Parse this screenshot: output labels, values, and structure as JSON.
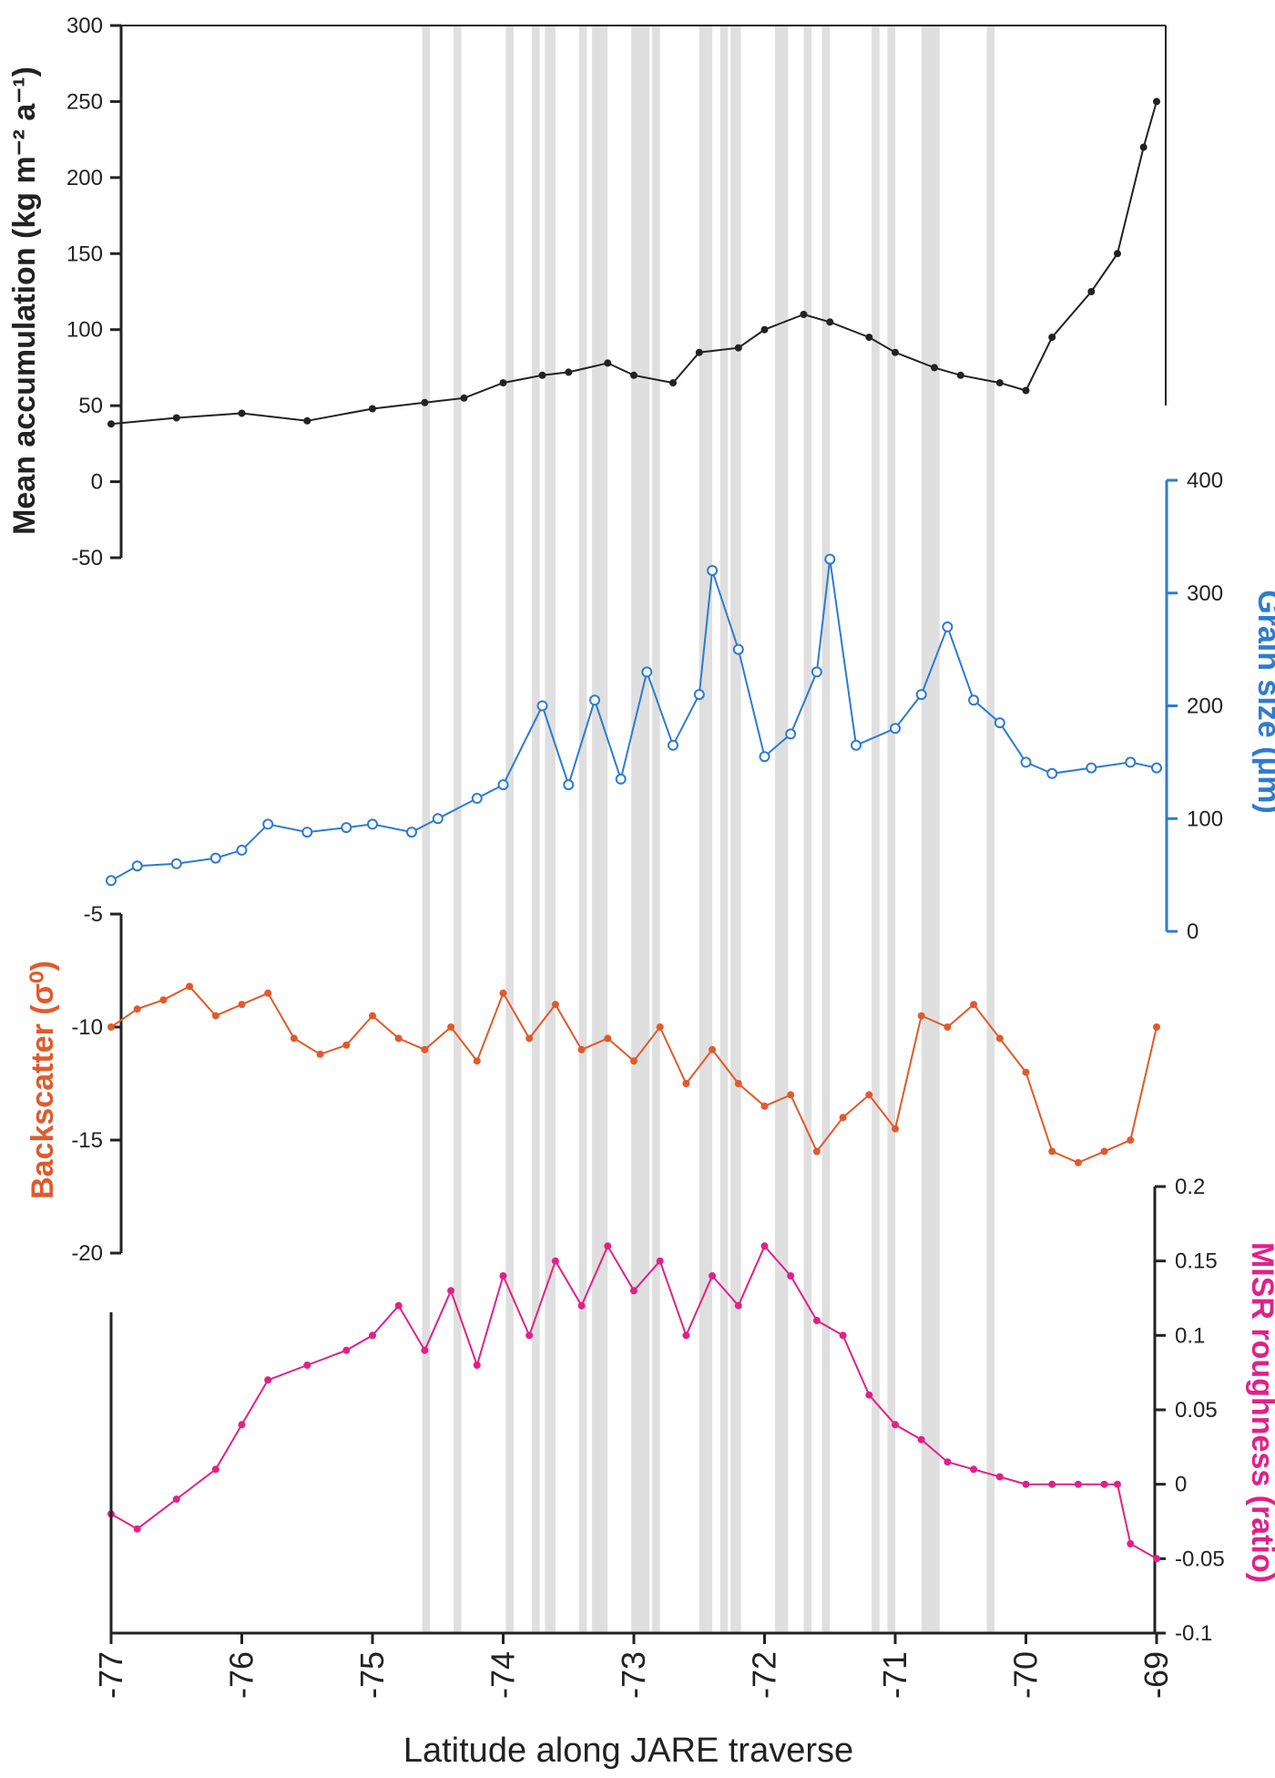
{
  "chart_data": {
    "type": "line",
    "x_axis": {
      "label": "Latitude along JARE traverse",
      "range": [
        -77,
        -69
      ],
      "ticks": [
        "-77",
        "-76",
        "-75",
        "-74",
        "-73",
        "-72",
        "-71",
        "-70",
        "-69"
      ]
    },
    "shaded_bands": [
      [
        -74.62,
        -74.56
      ],
      [
        -74.38,
        -74.32
      ],
      [
        -73.98,
        -73.92
      ],
      [
        -73.78,
        -73.72
      ],
      [
        -73.68,
        -73.6
      ],
      [
        -73.42,
        -73.36
      ],
      [
        -73.32,
        -73.2
      ],
      [
        -73.02,
        -72.88
      ],
      [
        -72.86,
        -72.8
      ],
      [
        -72.5,
        -72.4
      ],
      [
        -72.34,
        -72.28
      ],
      [
        -72.26,
        -72.18
      ],
      [
        -71.92,
        -71.82
      ],
      [
        -71.7,
        -71.64
      ],
      [
        -71.56,
        -71.5
      ],
      [
        -71.18,
        -71.12
      ],
      [
        -71.06,
        -71.0
      ],
      [
        -70.8,
        -70.66
      ],
      [
        -70.3,
        -70.24
      ]
    ],
    "panels": [
      {
        "id": "accumulation",
        "ylabel": "Mean accumulation (kg m⁻² a⁻¹)",
        "color": "#222222",
        "yrange": [
          -50,
          300
        ],
        "yticks": [
          "300",
          "250",
          "200",
          "150",
          "100",
          "50",
          "0",
          "-50"
        ],
        "axis_side": "left",
        "x": [
          -77.0,
          -76.5,
          -76.0,
          -75.5,
          -75.0,
          -74.6,
          -74.3,
          -74.0,
          -73.7,
          -73.5,
          -73.2,
          -73.0,
          -72.7,
          -72.5,
          -72.2,
          -72.0,
          -71.7,
          -71.5,
          -71.2,
          -71.0,
          -70.7,
          -70.5,
          -70.2,
          -70.0,
          -69.8,
          -69.5,
          -69.3,
          -69.1,
          -69.0
        ],
        "values": [
          38,
          42,
          45,
          40,
          48,
          52,
          55,
          65,
          70,
          72,
          78,
          70,
          65,
          85,
          88,
          100,
          110,
          105,
          95,
          85,
          75,
          70,
          65,
          60,
          95,
          125,
          150,
          220,
          250
        ]
      },
      {
        "id": "grain_size",
        "ylabel": "Grain size (μm)",
        "color": "#2e7bcf",
        "yrange": [
          0,
          400
        ],
        "yticks": [
          "400",
          "300",
          "200",
          "100",
          "0"
        ],
        "axis_side": "right",
        "x": [
          -77.0,
          -76.8,
          -76.5,
          -76.2,
          -76.0,
          -75.8,
          -75.5,
          -75.2,
          -75.0,
          -74.7,
          -74.5,
          -74.2,
          -74.0,
          -73.7,
          -73.5,
          -73.3,
          -73.1,
          -72.9,
          -72.7,
          -72.5,
          -72.4,
          -72.2,
          -72.0,
          -71.8,
          -71.6,
          -71.5,
          -71.3,
          -71.0,
          -70.8,
          -70.6,
          -70.4,
          -70.2,
          -70.0,
          -69.8,
          -69.5,
          -69.2,
          -69.0
        ],
        "values": [
          45,
          58,
          60,
          65,
          72,
          95,
          88,
          92,
          95,
          88,
          100,
          118,
          130,
          200,
          130,
          205,
          135,
          230,
          165,
          210,
          320,
          250,
          155,
          175,
          230,
          330,
          165,
          180,
          210,
          270,
          205,
          185,
          150,
          140,
          145,
          150,
          145
        ]
      },
      {
        "id": "backscatter",
        "ylabel": "Backscatter (σ⁰)",
        "color": "#e05a2b",
        "yrange": [
          -20,
          -5
        ],
        "yticks": [
          "-5",
          "-10",
          "-15",
          "-20"
        ],
        "axis_side": "left",
        "x": [
          -77.0,
          -76.8,
          -76.6,
          -76.4,
          -76.2,
          -76.0,
          -75.8,
          -75.6,
          -75.4,
          -75.2,
          -75.0,
          -74.8,
          -74.6,
          -74.4,
          -74.2,
          -74.0,
          -73.8,
          -73.6,
          -73.4,
          -73.2,
          -73.0,
          -72.8,
          -72.6,
          -72.4,
          -72.2,
          -72.0,
          -71.8,
          -71.6,
          -71.4,
          -71.2,
          -71.0,
          -70.8,
          -70.6,
          -70.4,
          -70.2,
          -70.0,
          -69.8,
          -69.6,
          -69.4,
          -69.2,
          -69.0
        ],
        "values": [
          -10,
          -9.2,
          -8.8,
          -8.2,
          -9.5,
          -9.0,
          -8.5,
          -10.5,
          -11.2,
          -10.8,
          -9.5,
          -10.5,
          -11.0,
          -10.0,
          -11.5,
          -8.5,
          -10.5,
          -9.0,
          -11.0,
          -10.5,
          -11.5,
          -10.0,
          -12.5,
          -11.0,
          -12.5,
          -13.5,
          -13.0,
          -15.5,
          -14.0,
          -13.0,
          -14.5,
          -9.5,
          -10.0,
          -9.0,
          -10.5,
          -12.0,
          -15.5,
          -16.0,
          -15.5,
          -15.0,
          -10.0
        ]
      },
      {
        "id": "misr_roughness",
        "ylabel": "MISR roughness (ratio)",
        "color": "#e0218a",
        "yrange": [
          -0.1,
          0.2
        ],
        "yticks": [
          "0.2",
          "0.15",
          "0.1",
          "0.05",
          "0",
          "-0.05",
          "-0.1"
        ],
        "axis_side": "right",
        "x": [
          -77.0,
          -76.8,
          -76.5,
          -76.2,
          -76.0,
          -75.8,
          -75.5,
          -75.2,
          -75.0,
          -74.8,
          -74.6,
          -74.4,
          -74.2,
          -74.0,
          -73.8,
          -73.6,
          -73.4,
          -73.2,
          -73.0,
          -72.8,
          -72.6,
          -72.4,
          -72.2,
          -72.0,
          -71.8,
          -71.6,
          -71.4,
          -71.2,
          -71.0,
          -70.8,
          -70.6,
          -70.4,
          -70.2,
          -70.0,
          -69.8,
          -69.6,
          -69.4,
          -69.3,
          -69.2,
          -69.0
        ],
        "values": [
          -0.02,
          -0.03,
          -0.01,
          0.01,
          0.04,
          0.07,
          0.08,
          0.09,
          0.1,
          0.12,
          0.09,
          0.13,
          0.08,
          0.14,
          0.1,
          0.15,
          0.12,
          0.16,
          0.13,
          0.15,
          0.1,
          0.14,
          0.12,
          0.16,
          0.14,
          0.11,
          0.1,
          0.06,
          0.04,
          0.03,
          0.015,
          0.01,
          0.005,
          0.0,
          0.0,
          0.0,
          0.0,
          0.0,
          -0.04,
          -0.05
        ]
      }
    ]
  }
}
